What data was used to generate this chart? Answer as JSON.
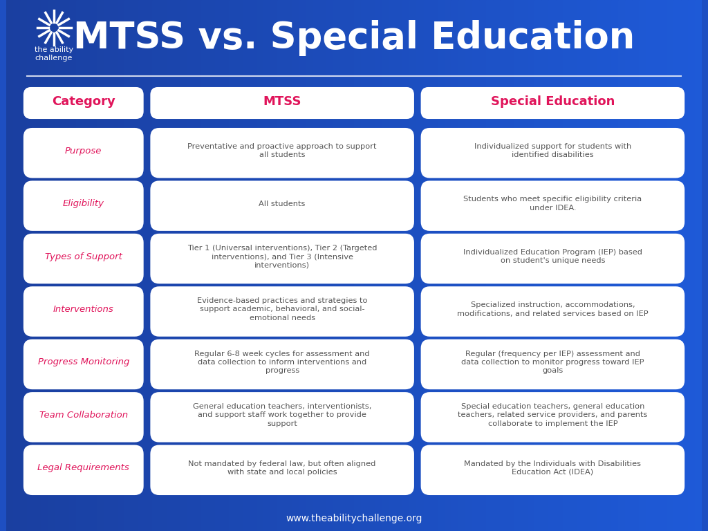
{
  "title": "MTSS vs. Special Education",
  "bg_gradient_left": "#1a3fa0",
  "bg_gradient_right": "#2060d0",
  "bg_color": "#1e4fc2",
  "header_color": "#e0145a",
  "cell_bg": "white",
  "cell_text_color": "#555555",
  "category_text_color": "#e0145a",
  "header_text_color": "#e0145a",
  "footer_text": "www.theabilitychallenge.org",
  "footer_color": "white",
  "logo_text": "the ability\nchallenge",
  "columns": [
    "Category",
    "MTSS",
    "Special Education"
  ],
  "rows": [
    {
      "category": "Purpose",
      "mtss": "Preventative and proactive approach to support\nall students",
      "sped": "Individualized support for students with\nidentified disabilities"
    },
    {
      "category": "Eligibility",
      "mtss": "All students",
      "sped": "Students who meet specific eligibility criteria\nunder IDEA."
    },
    {
      "category": "Types of Support",
      "mtss": "Tier 1 (Universal interventions), Tier 2 (Targeted\ninterventions), and Tier 3 (Intensive\ninterventions)",
      "sped": "Individualized Education Program (IEP) based\non student's unique needs"
    },
    {
      "category": "Interventions",
      "mtss": "Evidence-based practices and strategies to\nsupport academic, behavioral, and social-\nemotional needs",
      "sped": "Specialized instruction, accommodations,\nmodifications, and related services based on IEP"
    },
    {
      "category": "Progress Monitoring",
      "mtss": "Regular 6-8 week cycles for assessment and\ndata collection to inform interventions and\nprogress",
      "sped": "Regular (frequency per IEP) assessment and\ndata collection to monitor progress toward IEP\ngoals"
    },
    {
      "category": "Team Collaboration",
      "mtss": "General education teachers, interventionists,\nand support staff work together to provide\nsupport",
      "sped": "Special education teachers, general education\nteachers, related service providers, and parents\ncollaborate to implement the IEP"
    },
    {
      "category": "Legal Requirements",
      "mtss": "Not mandated by federal law, but often aligned\nwith state and local policies",
      "sped": "Mandated by the Individuals with Disabilities\nEducation Act (IDEA)"
    }
  ]
}
